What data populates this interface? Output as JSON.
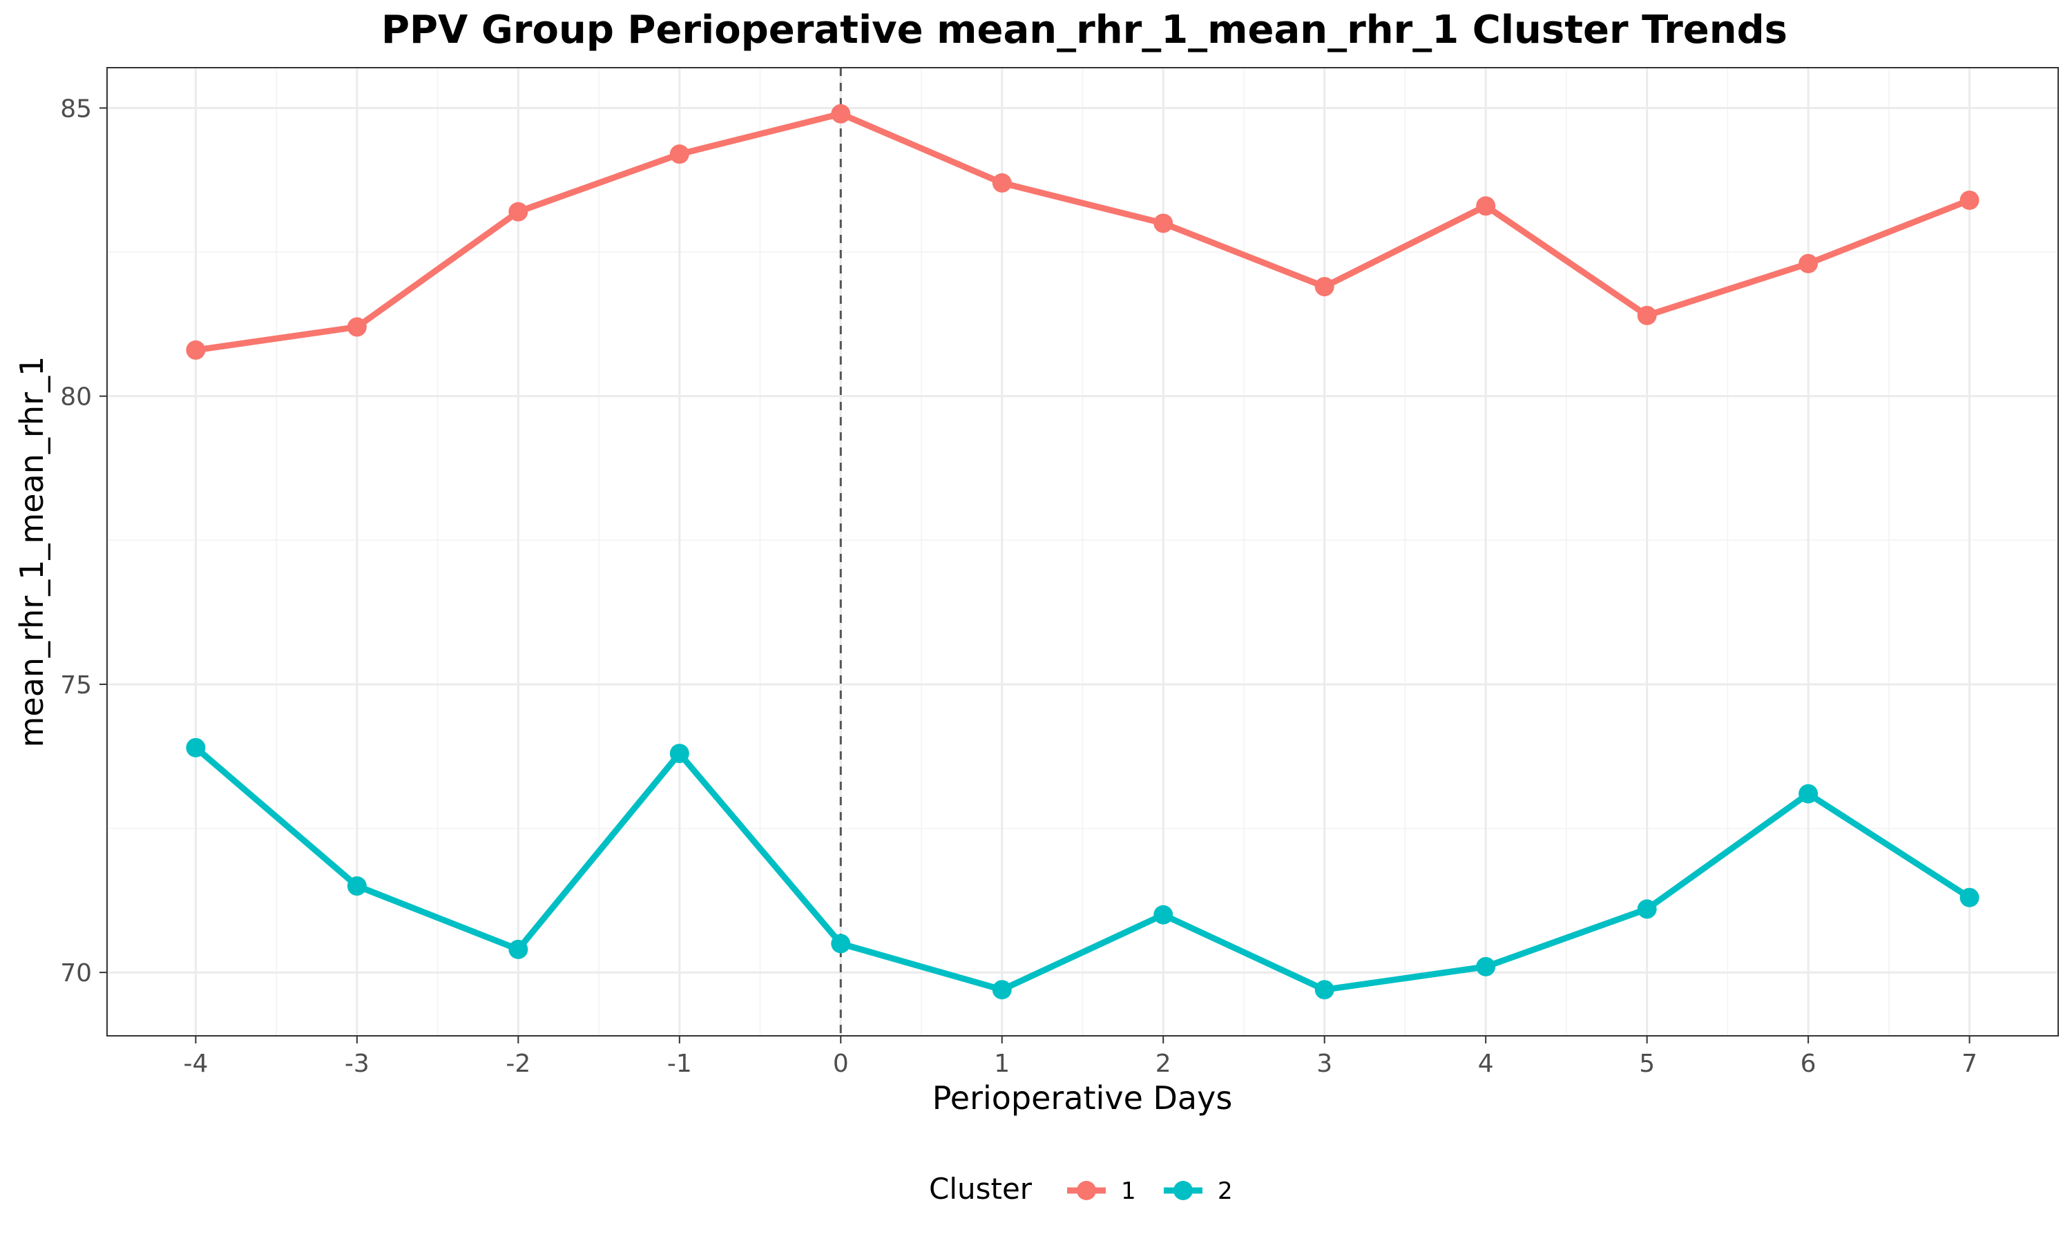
{
  "chart_data": {
    "type": "line",
    "title": "PPV Group Perioperative mean_rhr_1_mean_rhr_1 Cluster Trends",
    "xlabel": "Perioperative Days",
    "ylabel": "mean_rhr_1_mean_rhr_1",
    "x": [
      -4,
      -3,
      -2,
      -1,
      0,
      1,
      2,
      3,
      4,
      5,
      6,
      7
    ],
    "x_tick_labels": [
      "-4",
      "-3",
      "-2",
      "-1",
      "0",
      "1",
      "2",
      "3",
      "4",
      "5",
      "6",
      "7"
    ],
    "xlim": [
      -4.55,
      7.55
    ],
    "ylim": [
      68.9,
      85.7
    ],
    "y_ticks": [
      70,
      75,
      80,
      85
    ],
    "y_tick_labels": [
      "70",
      "75",
      "80",
      "85"
    ],
    "grid": true,
    "reference_line": {
      "x": 0,
      "style": "dashed",
      "color": "#555555"
    },
    "legend": {
      "title": "Cluster",
      "position": "bottom"
    },
    "series": [
      {
        "name": "1",
        "color": "#F8766D",
        "values": [
          80.8,
          81.2,
          83.2,
          84.2,
          84.9,
          83.7,
          83.0,
          81.9,
          83.3,
          81.4,
          82.3,
          83.4
        ]
      },
      {
        "name": "2",
        "color": "#00BFC4",
        "values": [
          73.9,
          71.5,
          70.4,
          73.8,
          70.5,
          69.7,
          71.0,
          69.7,
          70.1,
          71.1,
          73.1,
          71.3
        ]
      }
    ]
  }
}
